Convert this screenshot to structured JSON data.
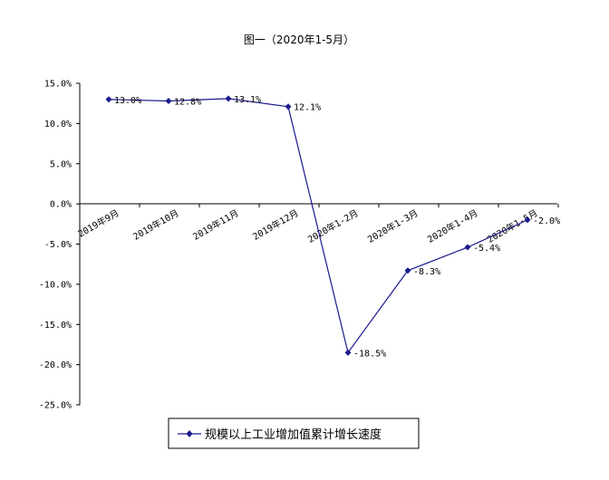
{
  "chart_data": {
    "type": "line",
    "title": "图一（2020年1-5月）",
    "categories": [
      "2019年9月",
      "2019年10月",
      "2019年11月",
      "2019年12月",
      "2020年1-2月",
      "2020年1-3月",
      "2020年1-4月",
      "2020年1-5月"
    ],
    "series": [
      {
        "name": "规模以上工业增加值累计增长速度",
        "values": [
          13.0,
          12.8,
          13.1,
          12.1,
          -18.5,
          -8.3,
          -5.4,
          -2.0
        ],
        "labels": [
          "13.0%",
          "12.8%",
          "13.1%",
          "12.1%",
          "-18.5%",
          "-8.3%",
          "-5.4%",
          "-2.0%"
        ],
        "color": "#1a1a8c"
      }
    ],
    "ylim": [
      -25,
      15
    ],
    "yticks": [
      "15.0%",
      "10.0%",
      "5.0%",
      "0.0%",
      "-5.0%",
      "-10.0%",
      "-15.0%",
      "-20.0%",
      "-25.0%"
    ],
    "grid": false,
    "legend_position": "bottom"
  }
}
